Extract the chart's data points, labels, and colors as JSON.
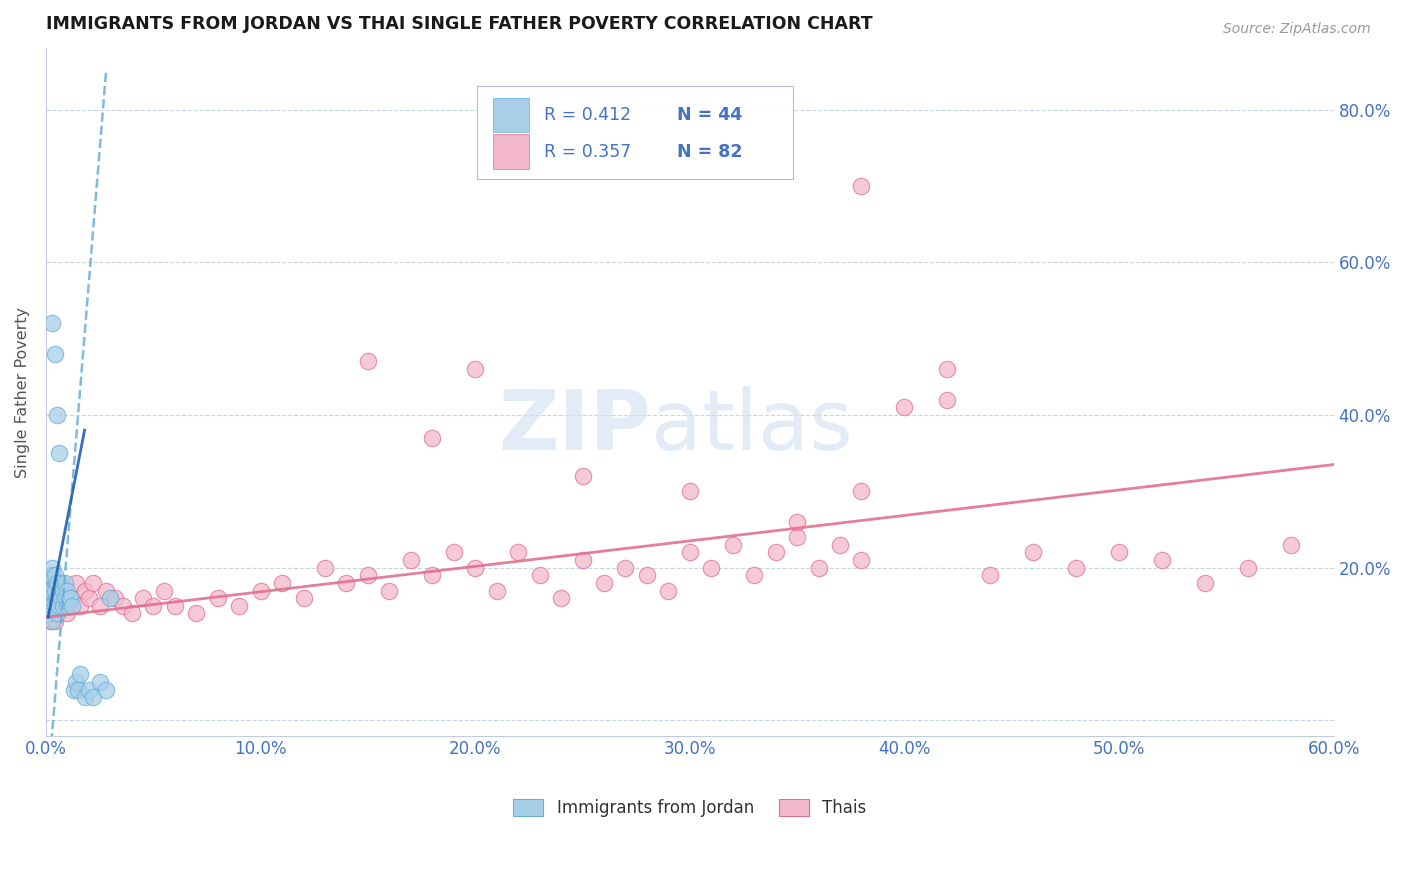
{
  "title": "IMMIGRANTS FROM JORDAN VS THAI SINGLE FATHER POVERTY CORRELATION CHART",
  "source": "Source: ZipAtlas.com",
  "ylabel": "Single Father Poverty",
  "xlim": [
    0.0,
    0.6
  ],
  "ylim": [
    -0.02,
    0.88
  ],
  "xtick_vals": [
    0.0,
    0.1,
    0.2,
    0.3,
    0.4,
    0.5,
    0.6
  ],
  "ytick_vals": [
    0.0,
    0.2,
    0.4,
    0.6,
    0.8
  ],
  "ytick_labels": [
    "",
    "20.0%",
    "40.0%",
    "60.0%",
    "80.0%"
  ],
  "xtick_labels": [
    "0.0%",
    "10.0%",
    "20.0%",
    "30.0%",
    "40.0%",
    "50.0%",
    "60.0%"
  ],
  "legend_r1": "R = 0.412",
  "legend_n1": "N = 44",
  "legend_r2": "R = 0.357",
  "legend_n2": "N = 82",
  "color_jordan": "#a8cfe8",
  "color_jordan_edge": "#6aaed6",
  "color_thai": "#f4b8cb",
  "color_thai_edge": "#e07090",
  "color_jordan_line": "#6aaed6",
  "color_thai_line": "#e07090",
  "color_text_blue": "#4472c4",
  "color_source": "#999999",
  "color_watermark": "#d0dff0",
  "jordan_x": [
    0.001,
    0.001,
    0.001,
    0.002,
    0.002,
    0.002,
    0.002,
    0.003,
    0.003,
    0.003,
    0.003,
    0.003,
    0.004,
    0.004,
    0.004,
    0.005,
    0.005,
    0.005,
    0.006,
    0.006,
    0.007,
    0.007,
    0.008,
    0.008,
    0.009,
    0.009,
    0.01,
    0.01,
    0.011,
    0.012,
    0.013,
    0.014,
    0.015,
    0.016,
    0.018,
    0.02,
    0.022,
    0.025,
    0.028,
    0.03,
    0.003,
    0.004,
    0.005,
    0.006
  ],
  "jordan_y": [
    0.14,
    0.16,
    0.18,
    0.14,
    0.16,
    0.17,
    0.19,
    0.13,
    0.15,
    0.17,
    0.19,
    0.2,
    0.15,
    0.17,
    0.19,
    0.14,
    0.16,
    0.18,
    0.15,
    0.17,
    0.16,
    0.18,
    0.15,
    0.17,
    0.16,
    0.18,
    0.15,
    0.17,
    0.16,
    0.15,
    0.04,
    0.05,
    0.04,
    0.06,
    0.03,
    0.04,
    0.03,
    0.05,
    0.04,
    0.16,
    0.52,
    0.48,
    0.4,
    0.35
  ],
  "thai_x": [
    0.001,
    0.001,
    0.002,
    0.002,
    0.003,
    0.003,
    0.004,
    0.004,
    0.005,
    0.005,
    0.006,
    0.006,
    0.007,
    0.008,
    0.009,
    0.01,
    0.012,
    0.014,
    0.016,
    0.018,
    0.02,
    0.022,
    0.025,
    0.028,
    0.032,
    0.036,
    0.04,
    0.045,
    0.05,
    0.055,
    0.06,
    0.07,
    0.08,
    0.09,
    0.1,
    0.11,
    0.12,
    0.13,
    0.14,
    0.15,
    0.16,
    0.17,
    0.18,
    0.19,
    0.2,
    0.21,
    0.22,
    0.23,
    0.24,
    0.25,
    0.26,
    0.27,
    0.28,
    0.29,
    0.3,
    0.31,
    0.32,
    0.33,
    0.34,
    0.35,
    0.36,
    0.37,
    0.38,
    0.4,
    0.42,
    0.44,
    0.46,
    0.48,
    0.5,
    0.52,
    0.54,
    0.56,
    0.58,
    0.38,
    0.2,
    0.25,
    0.3,
    0.18,
    0.42,
    0.35,
    0.15,
    0.59
  ],
  "thai_y": [
    0.14,
    0.17,
    0.13,
    0.16,
    0.14,
    0.17,
    0.13,
    0.15,
    0.14,
    0.16,
    0.15,
    0.18,
    0.16,
    0.17,
    0.15,
    0.14,
    0.16,
    0.18,
    0.15,
    0.17,
    0.16,
    0.18,
    0.15,
    0.17,
    0.16,
    0.15,
    0.14,
    0.16,
    0.15,
    0.17,
    0.15,
    0.14,
    0.16,
    0.15,
    0.17,
    0.18,
    0.16,
    0.2,
    0.18,
    0.19,
    0.17,
    0.21,
    0.19,
    0.22,
    0.2,
    0.17,
    0.22,
    0.19,
    0.16,
    0.21,
    0.18,
    0.2,
    0.19,
    0.17,
    0.22,
    0.2,
    0.23,
    0.19,
    0.22,
    0.24,
    0.2,
    0.23,
    0.21,
    0.41,
    0.46,
    0.19,
    0.22,
    0.2,
    0.22,
    0.21,
    0.18,
    0.2,
    0.23,
    0.3,
    0.46,
    0.32,
    0.3,
    0.37,
    0.42,
    0.26,
    0.47,
    0.23
  ]
}
